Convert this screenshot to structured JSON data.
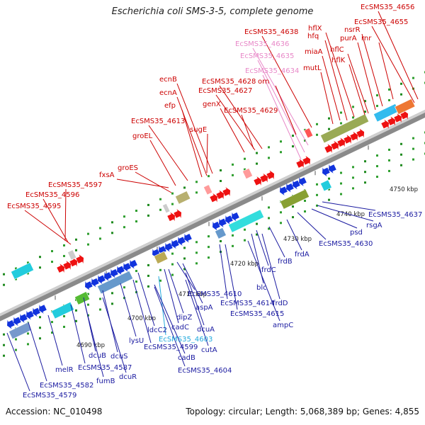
{
  "title": "Escherichia coli SMS-3-5, complete genome",
  "footer": {
    "accession": "Accession: NC_010498",
    "summary": "Topology: circular; Length: 5,068,389 bp; Genes: 4,855"
  },
  "colors": {
    "forward_label": "#cc0000",
    "reverse_label": "#1a1aa0",
    "pseudo_forward_label": "#e888c8",
    "pseudo_reverse_label": "#22aadd",
    "forward_gene": "#ee1111",
    "reverse_gene": "#1133dd",
    "backbone": "#888888"
  },
  "scale": {
    "ticks": [
      {
        "label": "4690 kbp"
      },
      {
        "label": "4700 kbp"
      },
      {
        "label": "4710 kbp"
      },
      {
        "label": "4720 kbp"
      },
      {
        "label": "4730 kbp"
      },
      {
        "label": "4740 kbp"
      },
      {
        "label": "4750 kbp"
      }
    ]
  },
  "top_labels": [
    {
      "text": "EcSMS35_4656",
      "kind": "forward"
    },
    {
      "text": "EcSMS35_4655",
      "kind": "forward"
    },
    {
      "text": "rnr",
      "kind": "forward"
    },
    {
      "text": "nsrR",
      "kind": "forward"
    },
    {
      "text": "purA",
      "kind": "forward"
    },
    {
      "text": "hflC",
      "kind": "forward"
    },
    {
      "text": "hflK",
      "kind": "forward"
    },
    {
      "text": "hflX",
      "kind": "forward"
    },
    {
      "text": "hfq",
      "kind": "forward"
    },
    {
      "text": "miaA",
      "kind": "forward"
    },
    {
      "text": "mutL",
      "kind": "forward"
    },
    {
      "text": "EcSMS35_4638",
      "kind": "forward"
    },
    {
      "text": "EcSMS35_4636",
      "kind": "pseudo"
    },
    {
      "text": "EcSMS35_4635",
      "kind": "pseudo"
    },
    {
      "text": "EcSMS35_4634",
      "kind": "pseudo"
    },
    {
      "text": "orn",
      "kind": "forward"
    },
    {
      "text": "EcSMS35_4628",
      "kind": "forward"
    },
    {
      "text": "EcSMS35_4627",
      "kind": "forward"
    },
    {
      "text": "genX",
      "kind": "forward"
    },
    {
      "text": "EcSMS35_4629",
      "kind": "forward"
    },
    {
      "text": "ecnB",
      "kind": "forward"
    },
    {
      "text": "ecnA",
      "kind": "forward"
    },
    {
      "text": "efp",
      "kind": "forward"
    },
    {
      "text": "EcSMS35_4613",
      "kind": "forward"
    },
    {
      "text": "sugE",
      "kind": "forward"
    },
    {
      "text": "groEL",
      "kind": "forward"
    },
    {
      "text": "groES",
      "kind": "forward"
    },
    {
      "text": "fxsA",
      "kind": "forward"
    },
    {
      "text": "EcSMS35_4597",
      "kind": "forward"
    },
    {
      "text": "EcSMS35_4596",
      "kind": "forward"
    },
    {
      "text": "EcSMS35_4595",
      "kind": "forward"
    }
  ],
  "bottom_labels": [
    {
      "text": "EcSMS35_4637",
      "kind": "reverse"
    },
    {
      "text": "rsgA",
      "kind": "reverse"
    },
    {
      "text": "psd",
      "kind": "reverse"
    },
    {
      "text": "EcSMS35_4630",
      "kind": "reverse"
    },
    {
      "text": "frdA",
      "kind": "reverse"
    },
    {
      "text": "frdB",
      "kind": "reverse"
    },
    {
      "text": "frdC",
      "kind": "reverse"
    },
    {
      "text": "blc",
      "kind": "reverse"
    },
    {
      "text": "frdD",
      "kind": "reverse"
    },
    {
      "text": "EcSMS35_4614",
      "kind": "reverse"
    },
    {
      "text": "EcSMS35_4615",
      "kind": "reverse"
    },
    {
      "text": "ampC",
      "kind": "reverse"
    },
    {
      "text": "EcSMS35_4610",
      "kind": "reverse"
    },
    {
      "text": "aspA",
      "kind": "reverse"
    },
    {
      "text": "dipZ",
      "kind": "reverse"
    },
    {
      "text": "dcuA",
      "kind": "reverse"
    },
    {
      "text": "cadC",
      "kind": "reverse"
    },
    {
      "text": "EcSMS35_4603",
      "kind": "pseudo-reverse"
    },
    {
      "text": "cutA",
      "kind": "reverse"
    },
    {
      "text": "ldcC2",
      "kind": "reverse"
    },
    {
      "text": "EcSMS35_4599",
      "kind": "reverse"
    },
    {
      "text": "cadB",
      "kind": "reverse"
    },
    {
      "text": "EcSMS35_4604",
      "kind": "reverse"
    },
    {
      "text": "lysU",
      "kind": "reverse"
    },
    {
      "text": "dcuS",
      "kind": "reverse"
    },
    {
      "text": "dcuB",
      "kind": "reverse"
    },
    {
      "text": "dcuR",
      "kind": "reverse"
    },
    {
      "text": "EcSMS35_4587",
      "kind": "reverse"
    },
    {
      "text": "fumB",
      "kind": "reverse"
    },
    {
      "text": "melR",
      "kind": "reverse"
    },
    {
      "text": "EcSMS35_4582",
      "kind": "reverse"
    },
    {
      "text": "EcSMS35_4579",
      "kind": "reverse"
    }
  ]
}
